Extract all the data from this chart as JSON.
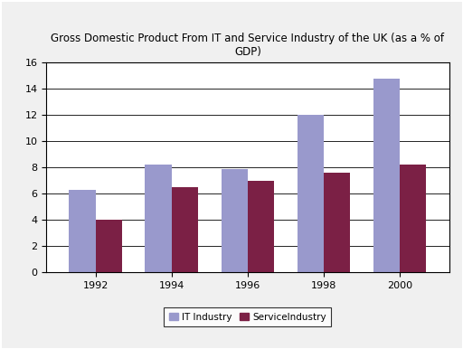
{
  "title": "Gross Domestic Product From IT and Service Industry of the UK (as a % of\nGDP)",
  "years": [
    "1992",
    "1994",
    "1996",
    "1998",
    "2000"
  ],
  "it_industry": [
    6.3,
    8.2,
    7.9,
    12.0,
    14.8
  ],
  "service_industry": [
    4.0,
    6.5,
    7.0,
    7.6,
    8.2
  ],
  "it_color": "#9999cc",
  "service_color": "#7b2045",
  "ylim": [
    0,
    16
  ],
  "yticks": [
    0,
    2,
    4,
    6,
    8,
    10,
    12,
    14,
    16
  ],
  "bar_width": 0.35,
  "legend_labels": [
    "IT Industry",
    "ServiceIndustry"
  ],
  "background_color": "#f0f0f0",
  "plot_bg_color": "#ffffff",
  "title_fontsize": 8.5,
  "tick_fontsize": 8
}
